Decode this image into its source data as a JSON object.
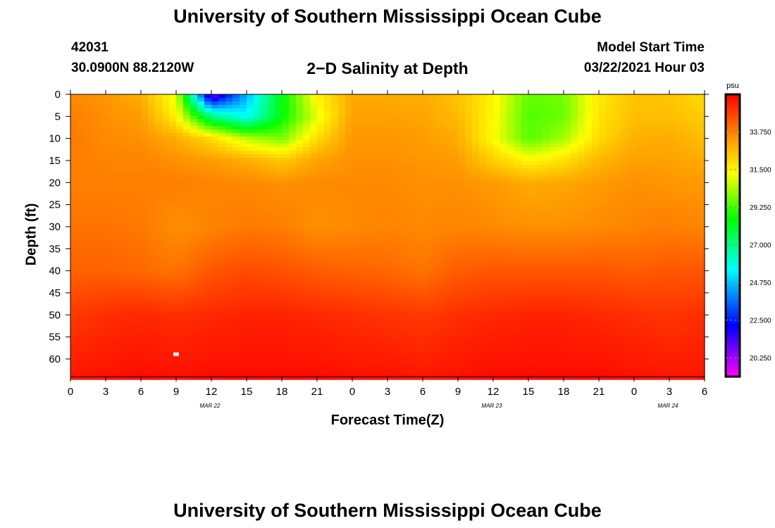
{
  "page": {
    "title_top": "University of Southern Mississippi Ocean Cube",
    "title_bottom": "University of Southern Mississippi Ocean Cube",
    "station_id": "42031",
    "coordinates": "30.0900N 88.2120W",
    "plot_title": "2−D Salinity at Depth",
    "model_start_label": "Model Start Time",
    "model_start_value": "03/22/2021 Hour 03"
  },
  "colors": {
    "magenta": "#ff00ff",
    "blue": "#0000ff",
    "cyan": "#00ffff",
    "green": "#00ff00",
    "yellow": "#ffff00",
    "orange": "#ffa500",
    "red": "#ff0000"
  },
  "chart_data": {
    "type": "heatmap",
    "title": "2−D Salinity at Depth",
    "xlabel": "Forecast Time(Z)",
    "ylabel": "Depth (ft)",
    "x_ticks": [
      "0",
      "3",
      "6",
      "9",
      "12",
      "15",
      "18",
      "21",
      "0",
      "3",
      "6",
      "9",
      "12",
      "15",
      "18",
      "21",
      "0",
      "3",
      "6"
    ],
    "x_hours": [
      0,
      3,
      6,
      9,
      12,
      15,
      18,
      21,
      24,
      27,
      30,
      33,
      36,
      39,
      42,
      45,
      48,
      51,
      54
    ],
    "date_labels": [
      {
        "text": "MAR  22",
        "hour": 12
      },
      {
        "text": "MAR  23",
        "hour": 36
      },
      {
        "text": "MAR  24",
        "hour": 51
      }
    ],
    "y_ticks": [
      0,
      5,
      10,
      15,
      20,
      25,
      30,
      35,
      40,
      45,
      50,
      55,
      60
    ],
    "ylim": [
      0,
      64
    ],
    "xlim": [
      0,
      54
    ],
    "colorbar": {
      "unit": "psu",
      "labels": [
        "33.750",
        "31.500",
        "29.250",
        "27.000",
        "24.750",
        "22.500",
        "20.250"
      ],
      "label_values": [
        33.75,
        31.5,
        29.25,
        27.0,
        24.75,
        22.5,
        20.25
      ],
      "range": [
        19.125,
        36.0
      ]
    },
    "salinity_depth_levels": [
      0,
      5,
      10,
      15,
      20,
      30,
      40,
      50,
      64
    ],
    "salinity_time_hours": [
      0,
      3,
      6,
      9,
      12,
      15,
      18,
      21,
      24,
      27,
      30,
      33,
      36,
      39,
      42,
      45,
      48,
      51,
      54
    ],
    "salinity_grid": [
      [
        33.6,
        33.4,
        32.9,
        31.0,
        20.5,
        24.5,
        28.5,
        31.5,
        33.0,
        33.0,
        33.0,
        32.5,
        31.5,
        29.6,
        29.8,
        31.7,
        32.5,
        32.5,
        32.0
      ],
      [
        33.8,
        33.5,
        33.3,
        31.5,
        27.0,
        25.5,
        28.5,
        31.0,
        33.2,
        33.2,
        33.1,
        32.7,
        31.4,
        29.4,
        29.7,
        31.8,
        32.6,
        32.6,
        32.3
      ],
      [
        33.9,
        33.6,
        33.5,
        33.0,
        32.0,
        30.5,
        29.8,
        32.0,
        33.4,
        33.4,
        33.3,
        33.0,
        31.3,
        29.5,
        30.3,
        32.0,
        32.9,
        33.0,
        32.6
      ],
      [
        33.8,
        33.7,
        33.7,
        33.5,
        33.3,
        33.0,
        32.4,
        33.2,
        33.5,
        33.5,
        33.4,
        33.3,
        32.3,
        31.4,
        31.9,
        32.8,
        33.2,
        33.2,
        33.0
      ],
      [
        33.8,
        33.8,
        33.8,
        33.8,
        33.7,
        33.6,
        33.5,
        33.6,
        33.6,
        33.6,
        33.5,
        33.5,
        33.3,
        33.0,
        33.1,
        33.3,
        33.5,
        33.4,
        33.3
      ],
      [
        34.0,
        34.0,
        33.9,
        33.5,
        33.7,
        33.9,
        33.8,
        33.5,
        33.6,
        33.7,
        33.6,
        33.7,
        33.6,
        33.5,
        33.5,
        33.6,
        33.7,
        33.8,
        33.7
      ],
      [
        34.3,
        34.3,
        34.2,
        34.0,
        34.5,
        34.7,
        34.6,
        34.4,
        34.3,
        34.2,
        34.0,
        34.4,
        34.5,
        34.5,
        34.5,
        34.5,
        34.4,
        34.5,
        34.5
      ],
      [
        35.0,
        35.2,
        35.3,
        35.2,
        35.3,
        35.4,
        35.4,
        35.3,
        35.2,
        35.1,
        35.0,
        35.2,
        35.3,
        35.4,
        35.4,
        35.3,
        35.2,
        35.1,
        35.2
      ],
      [
        35.6,
        35.7,
        35.8,
        35.7,
        35.8,
        35.8,
        35.8,
        35.8,
        35.7,
        35.7,
        35.6,
        35.7,
        35.8,
        35.8,
        35.8,
        35.8,
        35.7,
        35.6,
        35.6
      ]
    ],
    "marker": {
      "hour": 9,
      "depth": 59
    }
  }
}
